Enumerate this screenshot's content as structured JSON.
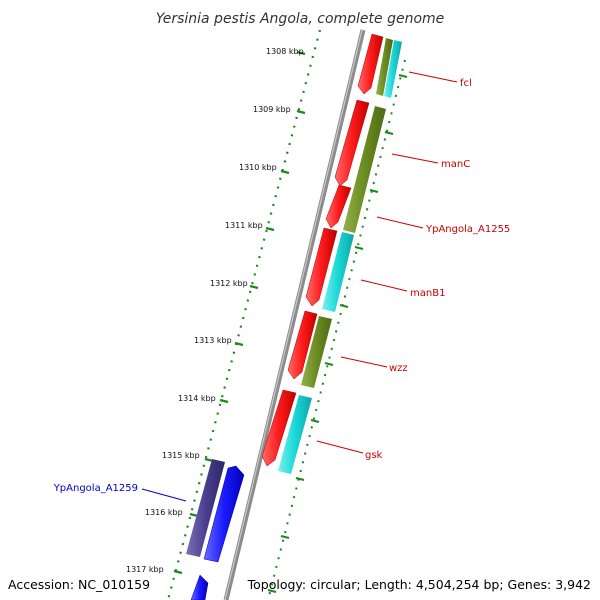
{
  "title": "Yersinia pestis Angola, complete genome",
  "accession": "Accession: NC_010159",
  "summary": "Topology: circular; Length: 4,504,254 bp; Genes: 3,942",
  "colors": {
    "backbone": "#8c8c8c",
    "tick": "#1a8a1a",
    "red_gene": "#ff1a1a",
    "olive_gene": "#6b8c22",
    "cyan_gene": "#19d7d7",
    "blue_gene": "#1a1aff",
    "purple_gene": "#4a3f8f",
    "label_red": "#cc0000",
    "label_blue": "#0000cc"
  },
  "scale": {
    "unit": "kbp",
    "ticks": [
      "1308 kbp",
      "1309 kbp",
      "1310 kbp",
      "1311 kbp",
      "1312 kbp",
      "1313 kbp",
      "1314 kbp",
      "1315 kbp",
      "1316 kbp",
      "1317 kbp"
    ]
  },
  "genes": [
    {
      "name": "fcl",
      "color": "red"
    },
    {
      "name": "manC",
      "color": "red"
    },
    {
      "name": "YpAngola_A1255",
      "color": "red"
    },
    {
      "name": "manB1",
      "color": "red"
    },
    {
      "name": "wzz",
      "color": "red"
    },
    {
      "name": "gsk",
      "color": "red"
    },
    {
      "name": "YpAngola_A1259",
      "color": "blue"
    }
  ]
}
